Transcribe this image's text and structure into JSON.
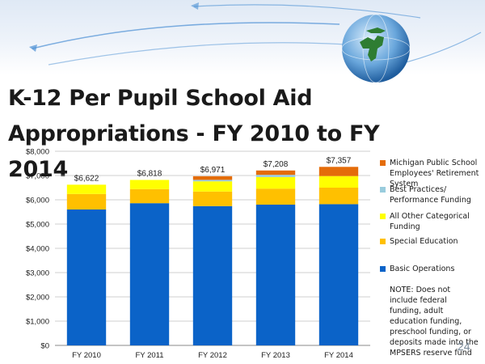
{
  "slide": {
    "title": "K-12 Per Pupil School Aid\nAppropriations - FY 2010 to FY 2014",
    "note": "NOTE: Does not include federal funding, adult education funding, preschool funding, or deposits made into the MPSERS reserve fund",
    "page_number": "24"
  },
  "colors": {
    "Basic Operations": "#0b63c8",
    "Special Education": "#ffc000",
    "All Other Categorical Funding": "#ffff00",
    "Best Practices/ Performance Funding": "#99ccdd",
    "Michigan Public School Employees' Retirement System": "#e46c0a",
    "axis": "#888888",
    "gridline": "#bfbfbf"
  },
  "chart_data": {
    "type": "bar",
    "stacked": true,
    "title": "",
    "xlabel": "",
    "ylabel": "",
    "categories": [
      "FY 2010",
      "FY 2011",
      "FY 2012",
      "FY 2013",
      "FY 2014"
    ],
    "ylim": [
      0,
      8000
    ],
    "y_ticks": [
      0,
      1000,
      2000,
      3000,
      4000,
      5000,
      6000,
      7000,
      8000
    ],
    "y_tick_labels": [
      "$0",
      "$1,000",
      "$2,000",
      "$3,000",
      "$4,000",
      "$5,000",
      "$6,000",
      "$7,000",
      "$8,000"
    ],
    "grid": true,
    "legend_position": "right",
    "series": [
      {
        "name": "Basic Operations",
        "values": [
          5600,
          5860,
          5740,
          5800,
          5820
        ]
      },
      {
        "name": "Special Education",
        "values": [
          640,
          580,
          600,
          660,
          680
        ]
      },
      {
        "name": "All Other Categorical Funding",
        "values": [
          382,
          378,
          421,
          478,
          477
        ]
      },
      {
        "name": "Best Practices/ Performance Funding",
        "values": [
          0,
          0,
          60,
          90,
          0
        ]
      },
      {
        "name": "Michigan Public School Employees' Retirement System",
        "values": [
          0,
          0,
          150,
          180,
          380
        ]
      }
    ],
    "legend_order": [
      "Michigan Public School Employees' Retirement System",
      "Best Practices/ Performance Funding",
      "All Other Categorical Funding",
      "Special Education",
      "Basic Operations"
    ],
    "totals": [
      6622,
      6818,
      6971,
      7208,
      7357
    ],
    "total_labels": [
      "$6,622",
      "$6,818",
      "$6,971",
      "$7,208",
      "$7,357"
    ]
  }
}
